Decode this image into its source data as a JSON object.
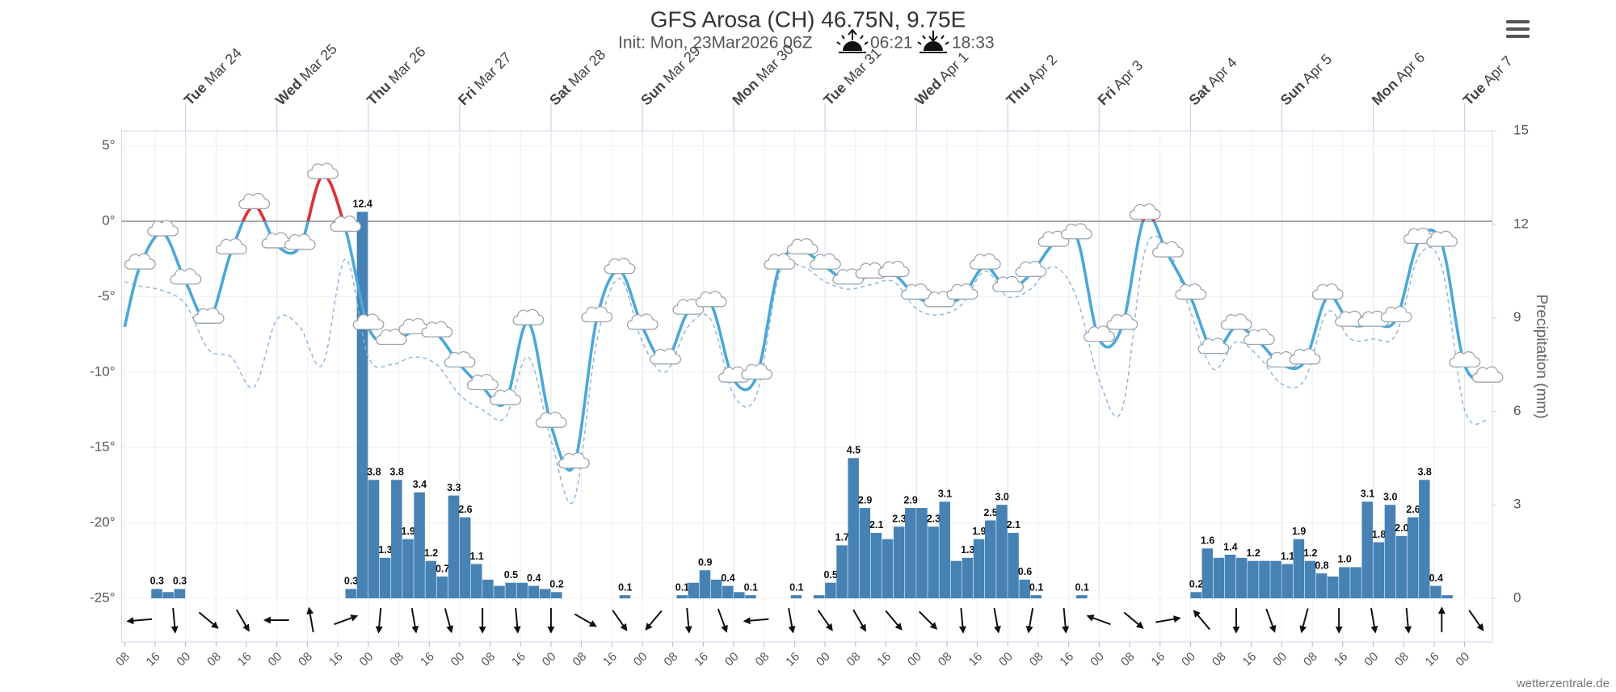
{
  "chart_data": {
    "type": "meteogram",
    "title": "GFS Arosa (CH) 46.75N, 9.75E",
    "subtitle": "Init: Mon, 23Mar2026 06Z",
    "sunrise": "06:21",
    "sunset": "18:33",
    "source": "wetterzentrale.de",
    "x": [
      8,
      12,
      18,
      24,
      30,
      36,
      42,
      48,
      54,
      60,
      66,
      72,
      78,
      84,
      90,
      96,
      102,
      108,
      114,
      120,
      126,
      132,
      138,
      144,
      150,
      156,
      162,
      168,
      174,
      180,
      186,
      192,
      198,
      204,
      210,
      216,
      222,
      228,
      234,
      240,
      246,
      252,
      258,
      264,
      270,
      276,
      282,
      288,
      294,
      300,
      306,
      312,
      318,
      324,
      330,
      336,
      342,
      348,
      354,
      360,
      366
    ],
    "xlim": [
      7.2,
      367.3
    ],
    "xticks": [
      {
        "value": 8,
        "label": "08"
      },
      {
        "value": 16,
        "label": "16"
      },
      {
        "value": 24,
        "label": "00"
      },
      {
        "value": 32,
        "label": "08"
      },
      {
        "value": 40,
        "label": "16"
      },
      {
        "value": 48,
        "label": "00"
      },
      {
        "value": 56,
        "label": "08"
      },
      {
        "value": 64,
        "label": "16"
      },
      {
        "value": 72,
        "label": "00"
      },
      {
        "value": 80,
        "label": "08"
      },
      {
        "value": 88,
        "label": "16"
      },
      {
        "value": 96,
        "label": "00"
      },
      {
        "value": 104,
        "label": "08"
      },
      {
        "value": 112,
        "label": "16"
      },
      {
        "value": 120,
        "label": "00"
      },
      {
        "value": 128,
        "label": "08"
      },
      {
        "value": 136,
        "label": "16"
      },
      {
        "value": 144,
        "label": "00"
      },
      {
        "value": 152,
        "label": "08"
      },
      {
        "value": 160,
        "label": "16"
      },
      {
        "value": 168,
        "label": "00"
      },
      {
        "value": 176,
        "label": "08"
      },
      {
        "value": 184,
        "label": "16"
      },
      {
        "value": 192,
        "label": "00"
      },
      {
        "value": 200,
        "label": "08"
      },
      {
        "value": 208,
        "label": "16"
      },
      {
        "value": 216,
        "label": "00"
      },
      {
        "value": 224,
        "label": "08"
      },
      {
        "value": 232,
        "label": "16"
      },
      {
        "value": 240,
        "label": "00"
      },
      {
        "value": 248,
        "label": "08"
      },
      {
        "value": 256,
        "label": "16"
      },
      {
        "value": 264,
        "label": "00"
      },
      {
        "value": 272,
        "label": "08"
      },
      {
        "value": 280,
        "label": "16"
      },
      {
        "value": 288,
        "label": "00"
      },
      {
        "value": 296,
        "label": "08"
      },
      {
        "value": 304,
        "label": "16"
      },
      {
        "value": 312,
        "label": "00"
      },
      {
        "value": 320,
        "label": "08"
      },
      {
        "value": 328,
        "label": "16"
      },
      {
        "value": 336,
        "label": "00"
      },
      {
        "value": 344,
        "label": "08"
      },
      {
        "value": 352,
        "label": "16"
      },
      {
        "value": 360,
        "label": "00"
      }
    ],
    "day_labels": [
      {
        "value": 24,
        "weekday": "Tue",
        "date": "Mar 24"
      },
      {
        "value": 48,
        "weekday": "Wed",
        "date": "Mar 25"
      },
      {
        "value": 72,
        "weekday": "Thu",
        "date": "Mar 26"
      },
      {
        "value": 96,
        "weekday": "Fri",
        "date": "Mar 27"
      },
      {
        "value": 120,
        "weekday": "Sat",
        "date": "Mar 28"
      },
      {
        "value": 144,
        "weekday": "Sun",
        "date": "Mar 29"
      },
      {
        "value": 168,
        "weekday": "Mon",
        "date": "Mar 30"
      },
      {
        "value": 192,
        "weekday": "Tue",
        "date": "Mar 31"
      },
      {
        "value": 216,
        "weekday": "Wed",
        "date": "Apr 1"
      },
      {
        "value": 240,
        "weekday": "Thu",
        "date": "Apr 2"
      },
      {
        "value": 264,
        "weekday": "Fri",
        "date": "Apr 3"
      },
      {
        "value": 288,
        "weekday": "Sat",
        "date": "Apr 4"
      },
      {
        "value": 312,
        "weekday": "Sun",
        "date": "Apr 5"
      },
      {
        "value": 336,
        "weekday": "Mon",
        "date": "Apr 6"
      },
      {
        "value": 360,
        "weekday": "Tue",
        "date": "Apr 7"
      }
    ],
    "ylim": [
      -25,
      6
    ],
    "yticks": [
      {
        "value": -25,
        "label": "-25°"
      },
      {
        "value": -20,
        "label": "-20°"
      },
      {
        "value": -15,
        "label": "-15°"
      },
      {
        "value": -10,
        "label": "-10°"
      },
      {
        "value": -5,
        "label": "-5°"
      },
      {
        "value": 0,
        "label": "0°"
      },
      {
        "value": 5,
        "label": "5°"
      }
    ],
    "y2lim": [
      0,
      15
    ],
    "y2ticks": [
      0,
      3,
      6,
      9,
      12,
      15
    ],
    "y2label": "Precipitation (mm)",
    "grid": true,
    "zero_line": true,
    "series": [
      {
        "type": "bar",
        "axis": "y2",
        "color": "#4682b4",
        "x": [
          15,
          18,
          21,
          66,
          69,
          72,
          75,
          78,
          81,
          84,
          87,
          90,
          93,
          96,
          99,
          102,
          105,
          108,
          111,
          114,
          117,
          120,
          138,
          153,
          156,
          159,
          162,
          165,
          168,
          171,
          183,
          189,
          192,
          195,
          198,
          201,
          204,
          207,
          210,
          213,
          216,
          219,
          222,
          225,
          228,
          231,
          234,
          237,
          240,
          243,
          246,
          258,
          288,
          291,
          294,
          297,
          300,
          303,
          306,
          309,
          312,
          315,
          318,
          321,
          324,
          327,
          330,
          333,
          336,
          339,
          342,
          345,
          348,
          351,
          354
        ],
        "values": [
          0.3,
          0.2,
          0.3,
          0.3,
          12.4,
          3.8,
          1.3,
          3.8,
          1.9,
          3.4,
          1.2,
          0.7,
          3.3,
          2.6,
          1.1,
          0.6,
          0.4,
          0.5,
          0.5,
          0.4,
          0.3,
          0.2,
          0.1,
          0.1,
          0.5,
          0.9,
          0.6,
          0.4,
          0.2,
          0.1,
          0.1,
          0.1,
          0.5,
          1.7,
          4.5,
          2.9,
          2.1,
          1.9,
          2.3,
          2.9,
          2.9,
          2.3,
          3.1,
          1.2,
          1.3,
          1.9,
          2.5,
          3.0,
          2.1,
          0.6,
          0.1,
          0.1,
          0.2,
          1.6,
          1.3,
          1.4,
          1.3,
          1.2,
          1.2,
          1.2,
          1.1,
          1.9,
          1.2,
          0.8,
          0.7,
          1.0,
          1.0,
          3.1,
          1.8,
          3.0,
          2.0,
          2.6,
          3.8,
          0.4,
          0.1
        ],
        "value_labels": [
          "0.3",
          null,
          "0.3",
          "0.3",
          "12.4",
          "3.8",
          "1.3",
          "3.8",
          "1.9",
          "3.4",
          "1.2",
          "0.7",
          "3.3",
          "2.6",
          "1.1",
          null,
          null,
          "0.5",
          null,
          "0.4",
          null,
          "0.2",
          "0.1",
          "0.1",
          null,
          "0.9",
          null,
          "0.4",
          null,
          "0.1",
          "0.1",
          null,
          "0.5",
          "1.7",
          "4.5",
          "2.9",
          "2.1",
          null,
          "2.3",
          "2.9",
          null,
          "2.3",
          "3.1",
          null,
          "1.3",
          "1.9",
          "2.5",
          "3.0",
          "2.1",
          "0.6",
          "0.1",
          "0.1",
          "0.2",
          "1.6",
          null,
          "1.4",
          null,
          "1.2",
          null,
          null,
          "1.1",
          "1.9",
          "1.2",
          "0.8",
          null,
          "1.0",
          null,
          "3.1",
          "1.8",
          "3.0",
          "2.0",
          "2.6",
          "3.8",
          "0.4",
          null
        ]
      },
      {
        "type": "line",
        "color": "#8ab4dc",
        "dash": true,
        "values": [
          -4,
          -4.3,
          -4.6,
          -5.5,
          -8.5,
          -9,
          -11,
          -6.5,
          -7,
          -9.5,
          -2.5,
          -9,
          -9.5,
          -9,
          -9.5,
          -11.5,
          -12.5,
          -13,
          -9,
          -14.5,
          -18.5,
          -8,
          -3.8,
          -8,
          -10,
          -7,
          -6.5,
          -11.5,
          -11.5,
          -3.5,
          -3,
          -4,
          -4.5,
          -4.2,
          -4,
          -5.8,
          -6.2,
          -5.5,
          -3.3,
          -5,
          -4.5,
          -3,
          -5,
          -10.5,
          -12.5,
          -2,
          -1.8,
          -6,
          -9.8,
          -8,
          -9,
          -10.8,
          -10.5,
          -6,
          -7.8,
          -7.8,
          -7.5,
          -2.3,
          -3,
          -12.5,
          -13.2
        ]
      },
      {
        "type": "line",
        "color": "#4aa8d8",
        "warm_color": "#e0302f",
        "weather_icons": true,
        "values": [
          -7,
          -3,
          -0.8,
          -4,
          -6.6,
          -2,
          1,
          -1.6,
          -1.7,
          3,
          -0.5,
          -7,
          -8,
          -7.3,
          -7.5,
          -9.5,
          -11,
          -12,
          -6.7,
          -13.5,
          -16.2,
          -6.5,
          -3.3,
          -7,
          -9.3,
          -6,
          -5.5,
          -10.5,
          -10.3,
          -3,
          -2,
          -3,
          -4,
          -3.6,
          -3.5,
          -5,
          -5.5,
          -5,
          -3,
          -4.5,
          -3.5,
          -1.5,
          -1,
          -7.8,
          -7,
          0.3,
          -2.2,
          -5,
          -8.6,
          -7,
          -8,
          -9.5,
          -9.3,
          -5,
          -6.8,
          -6.8,
          -6.5,
          -1.3,
          -1.5,
          -9.5,
          -10.5
        ]
      }
    ],
    "wind": {
      "x": [
        12,
        21,
        30,
        39,
        48,
        57,
        66,
        75,
        84,
        93,
        102,
        111,
        120,
        129,
        138,
        147,
        156,
        165,
        174,
        183,
        192,
        201,
        210,
        219,
        228,
        237,
        246,
        255,
        264,
        273,
        282,
        291,
        300,
        309,
        318,
        327,
        336,
        345,
        354,
        363
      ],
      "direction": [
        85,
        355,
        310,
        330,
        90,
        170,
        250,
        5,
        350,
        345,
        0,
        355,
        0,
        300,
        325,
        40,
        355,
        340,
        85,
        350,
        325,
        330,
        320,
        315,
        355,
        350,
        10,
        355,
        110,
        310,
        260,
        140,
        0,
        340,
        15,
        0,
        350,
        355,
        180,
        325
      ]
    }
  }
}
